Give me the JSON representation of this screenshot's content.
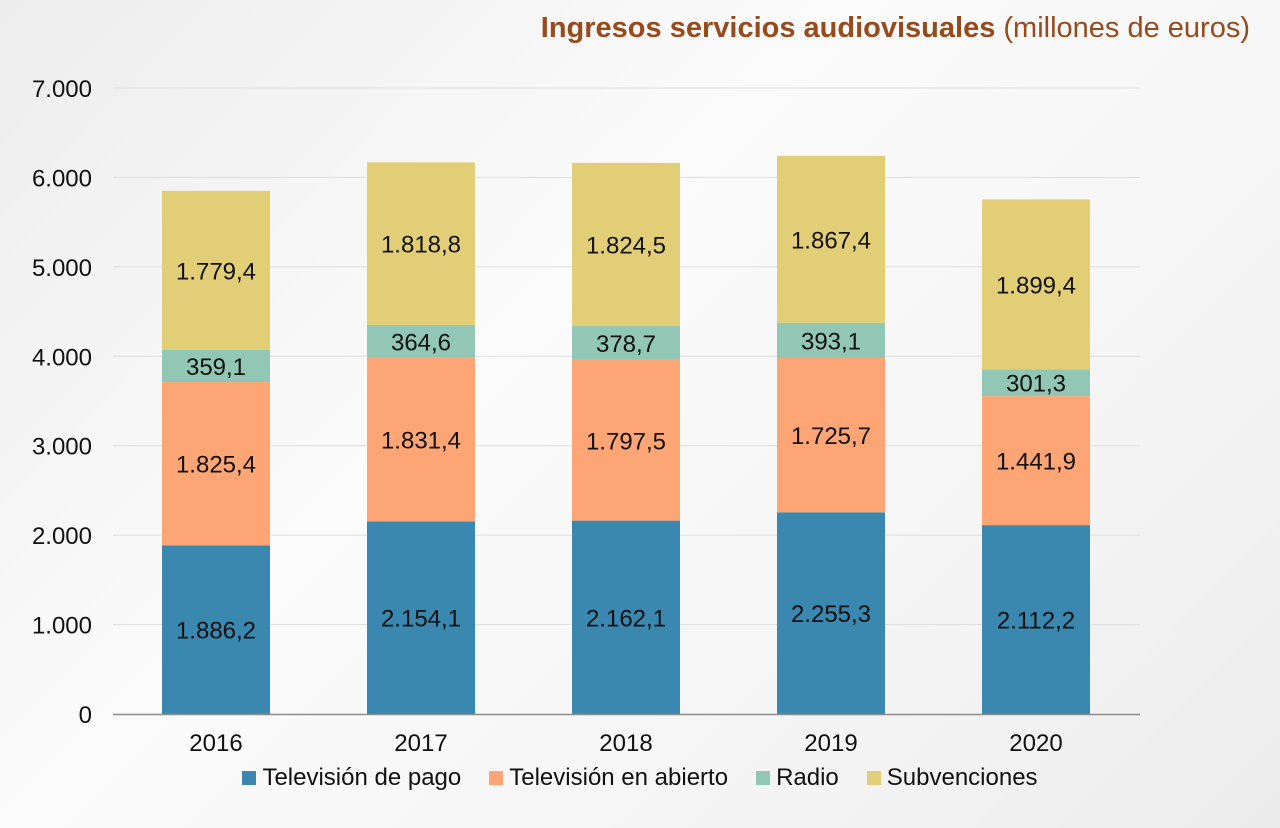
{
  "chart_data": {
    "type": "bar",
    "stacked": true,
    "title": "Ingresos servicios audiovisuales",
    "subtitle": "(millones de euros)",
    "categories": [
      "2016",
      "2017",
      "2018",
      "2019",
      "2020"
    ],
    "series": [
      {
        "name": "Televisión de pago",
        "color": "#3A88B0",
        "values": [
          1886.2,
          2154.1,
          2162.1,
          2255.3,
          2112.2
        ],
        "labels": [
          "1.886,2",
          "2.154,1",
          "2.162,1",
          "2.255,3",
          "2.112,2"
        ]
      },
      {
        "name": "Televisión en abierto",
        "color": "#FDA574",
        "values": [
          1825.4,
          1831.4,
          1797.5,
          1725.7,
          1441.9
        ],
        "labels": [
          "1.825,4",
          "1.831,4",
          "1.797,5",
          "1.725,7",
          "1.441,9"
        ]
      },
      {
        "name": "Radio",
        "color": "#92C6B5",
        "values": [
          359.1,
          364.6,
          378.7,
          393.1,
          301.3
        ],
        "labels": [
          "359,1",
          "364,6",
          "378,7",
          "393,1",
          "301,3"
        ]
      },
      {
        "name": "Subvenciones",
        "color": "#E3CE78",
        "values": [
          1779.4,
          1818.8,
          1824.5,
          1867.4,
          1899.4
        ],
        "labels": [
          "1.779,4",
          "1.818,8",
          "1.824,5",
          "1.867,4",
          "1.899,4"
        ]
      }
    ],
    "ylim": [
      0,
      7000
    ],
    "yticks": [
      0,
      1000,
      2000,
      3000,
      4000,
      5000,
      6000,
      7000
    ],
    "ytick_labels": [
      "0",
      "1.000",
      "2.000",
      "3.000",
      "4.000",
      "5.000",
      "6.000",
      "7.000"
    ],
    "grid": true,
    "legend_position": "bottom"
  }
}
